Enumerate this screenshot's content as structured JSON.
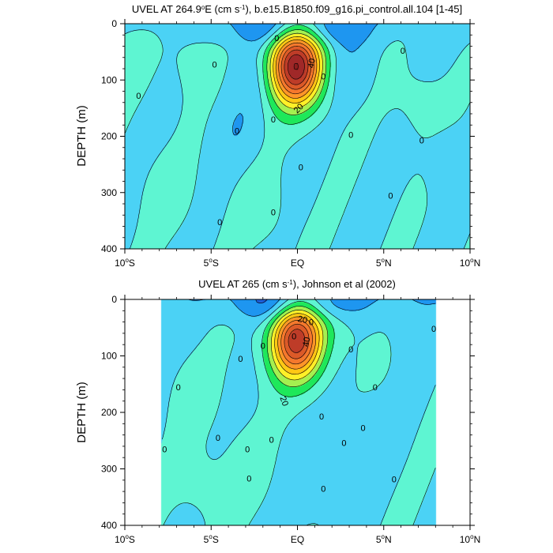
{
  "chart_data": [
    {
      "type": "contour",
      "title": "UVEL AT 264.9°E (cm s⁻¹), b.e15.B1850.f09_g16.pi_control.all.104 [1-45]",
      "title_parts": {
        "pre": "UVEL AT 264.9",
        "sup1": "o",
        "mid": "E (cm s",
        "sup2": "-1",
        "post": "), b.e15.B1850.f09_g16.pi_control.all.104 [1-45]"
      },
      "xlabel": "",
      "ylabel": "DEPTH (m)",
      "xlim": [
        -10,
        10
      ],
      "ylim": [
        400,
        0
      ],
      "x_ticks": [
        {
          "value": -10,
          "num": "10",
          "deg": "o",
          "hem": "S"
        },
        {
          "value": -5,
          "num": "5",
          "deg": "o",
          "hem": "S"
        },
        {
          "value": 0,
          "num": "EQ",
          "deg": "",
          "hem": ""
        },
        {
          "value": 5,
          "num": "5",
          "deg": "o",
          "hem": "N"
        },
        {
          "value": 10,
          "num": "10",
          "deg": "o",
          "hem": "N"
        }
      ],
      "y_ticks": [
        0,
        100,
        200,
        300,
        400
      ],
      "levels": [
        -40,
        -30,
        -20,
        -10,
        0,
        10,
        20,
        30,
        40,
        50,
        60,
        70,
        80,
        90,
        100
      ],
      "data_extent": [
        -10,
        10
      ],
      "eddy_centers": [
        [
          -10,
          55
        ],
        [
          -2.5,
          95
        ],
        [
          -6.2,
          60
        ],
        [
          -3.5,
          190
        ],
        [
          -7.5,
          300
        ],
        [
          3,
          80
        ],
        [
          7,
          140
        ],
        [
          8.5,
          240
        ],
        [
          -2,
          330
        ]
      ],
      "jet": {
        "x": -0.1,
        "depth": 75,
        "peak": 100
      },
      "contour_labels": [
        {
          "text": "40",
          "x": 0.8,
          "y": 70,
          "rotate": -80
        },
        {
          "text": "20",
          "x": 0.05,
          "y": 150,
          "rotate": -45
        },
        {
          "text": "0",
          "x": -1.2,
          "y": 25
        },
        {
          "text": "0",
          "x": -4.8,
          "y": 72
        },
        {
          "text": "0",
          "x": -9.2,
          "y": 128
        },
        {
          "text": "0",
          "x": -3.5,
          "y": 190
        },
        {
          "text": "0",
          "x": -1.4,
          "y": 170
        },
        {
          "text": "0",
          "x": 1.5,
          "y": 93
        },
        {
          "text": "0",
          "x": 3.1,
          "y": 197
        },
        {
          "text": "0",
          "x": 6.1,
          "y": 48
        },
        {
          "text": "0",
          "x": 7.2,
          "y": 207
        },
        {
          "text": "0",
          "x": 0.2,
          "y": 255
        },
        {
          "text": "0",
          "x": 5.4,
          "y": 305
        },
        {
          "text": "0",
          "x": -1.4,
          "y": 335
        },
        {
          "text": "0",
          "x": -4.5,
          "y": 352
        }
      ]
    },
    {
      "type": "contour",
      "title": "UVEL AT 265 (cm s⁻¹), Johnson et al (2002)",
      "title_parts": {
        "pre": "UVEL AT 265 (cm s",
        "sup1": "-1",
        "mid": "",
        "sup2": "",
        "post": "), Johnson et al (2002)"
      },
      "xlabel": "",
      "ylabel": "DEPTH (m)",
      "xlim": [
        -10,
        10
      ],
      "ylim": [
        400,
        0
      ],
      "x_ticks": [
        {
          "value": -10,
          "num": "10",
          "deg": "o",
          "hem": "S"
        },
        {
          "value": -5,
          "num": "5",
          "deg": "o",
          "hem": "S"
        },
        {
          "value": 0,
          "num": "EQ",
          "deg": "",
          "hem": ""
        },
        {
          "value": 5,
          "num": "5",
          "deg": "o",
          "hem": "N"
        },
        {
          "value": 10,
          "num": "10",
          "deg": "o",
          "hem": "N"
        }
      ],
      "y_ticks": [
        0,
        100,
        200,
        300,
        400
      ],
      "levels": [
        -40,
        -30,
        -20,
        -10,
        0,
        10,
        20,
        30,
        40,
        50,
        60,
        70,
        80,
        90,
        100
      ],
      "data_extent": [
        -7.9,
        8
      ],
      "eddy_centers": [
        [
          -6,
          170
        ],
        [
          -1,
          20
        ],
        [
          2.5,
          35
        ],
        [
          6.5,
          25
        ],
        [
          -3,
          300
        ],
        [
          4,
          230
        ],
        [
          -5.5,
          330
        ],
        [
          1,
          330
        ]
      ],
      "jet": {
        "x": -0.1,
        "depth": 70,
        "peak": 90
      },
      "contour_labels": [
        {
          "text": "20",
          "x": 0.3,
          "y": 35,
          "rotate": 10
        },
        {
          "text": "40",
          "x": 0.5,
          "y": 75,
          "rotate": -80
        },
        {
          "text": "20",
          "x": -0.75,
          "y": 180,
          "rotate": 70
        },
        {
          "text": "0",
          "x": 0.8,
          "y": 40
        },
        {
          "text": "0",
          "x": -0.2,
          "y": 65
        },
        {
          "text": "0",
          "x": -2,
          "y": 82
        },
        {
          "text": "0",
          "x": -3.3,
          "y": 105
        },
        {
          "text": "0",
          "x": -6.9,
          "y": 155
        },
        {
          "text": "0",
          "x": -7.7,
          "y": 265
        },
        {
          "text": "0",
          "x": -4.6,
          "y": 245
        },
        {
          "text": "0",
          "x": -2.9,
          "y": 265
        },
        {
          "text": "0",
          "x": -2.8,
          "y": 317
        },
        {
          "text": "0",
          "x": -1.5,
          "y": 248
        },
        {
          "text": "0",
          "x": 1.4,
          "y": 207
        },
        {
          "text": "0",
          "x": 1.5,
          "y": 335
        },
        {
          "text": "0",
          "x": 3.1,
          "y": 88
        },
        {
          "text": "0",
          "x": 2.7,
          "y": 254
        },
        {
          "text": "0",
          "x": 4.5,
          "y": 155
        },
        {
          "text": "0",
          "x": 3.8,
          "y": 227
        },
        {
          "text": "0",
          "x": 5.6,
          "y": 318
        },
        {
          "text": "0",
          "x": 7.9,
          "y": 52
        }
      ]
    }
  ],
  "colors": {
    "levels": [
      "#0a28c8",
      "#1e60dc",
      "#1e96f0",
      "#4bd2f5",
      "#5ef5d2",
      "#1ee85a",
      "#a5f050",
      "#fff028",
      "#ffc814",
      "#ff9628",
      "#f5782d",
      "#dc5a28",
      "#be3c28",
      "#a02828",
      "#8c1e1e"
    ],
    "axis": "#000000",
    "contour_line": "#000000"
  }
}
